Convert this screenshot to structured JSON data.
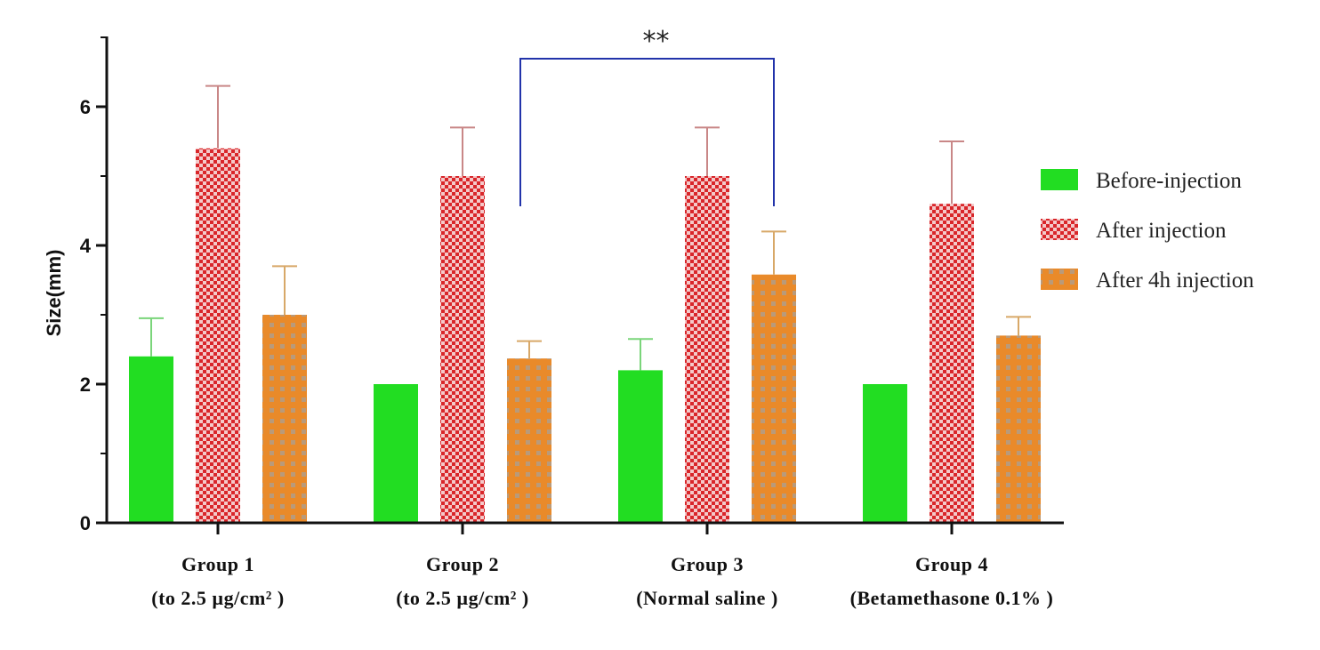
{
  "chart_data": {
    "type": "bar",
    "ylabel": "Size(mm)",
    "xlabel": "",
    "ylim": [
      0,
      7
    ],
    "yticks": [
      0,
      2,
      4,
      6
    ],
    "categories": [
      {
        "name": "Group 1",
        "sub": "(to 2.5 µg/cm² )"
      },
      {
        "name": "Group 2",
        "sub": "(to 2.5 µg/cm² )"
      },
      {
        "name": "Group 3",
        "sub": "(Normal saline )"
      },
      {
        "name": "Group 4",
        "sub": "(Betamethasone 0.1% )"
      }
    ],
    "series": [
      {
        "name": "Before-injection",
        "color": "#22dd22",
        "pattern": "solid",
        "values": [
          2.4,
          2.0,
          2.2,
          2.0
        ],
        "errors": [
          0.55,
          0.0,
          0.45,
          0.0
        ]
      },
      {
        "name": "After injection",
        "color": "#d9262a",
        "pattern": "checker",
        "values": [
          5.4,
          5.0,
          5.0,
          4.6
        ],
        "errors": [
          0.9,
          0.7,
          0.7,
          0.9
        ]
      },
      {
        "name": "After 4h injection",
        "color": "#e98a2a",
        "pattern": "grid",
        "values": [
          3.0,
          2.37,
          3.58,
          2.7
        ],
        "errors": [
          0.7,
          0.25,
          0.62,
          0.27
        ]
      }
    ],
    "significance": {
      "label": "**",
      "from_group": 1,
      "to_group": 2,
      "color": "#2233aa"
    },
    "legend_position": "right",
    "grid": false
  }
}
